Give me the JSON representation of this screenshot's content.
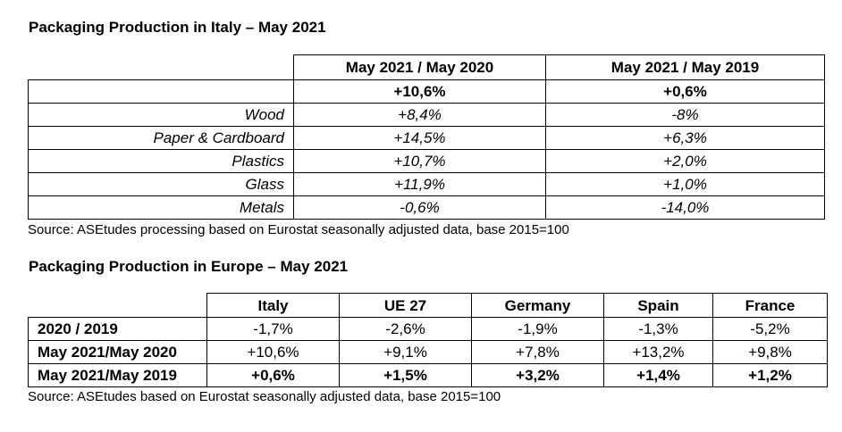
{
  "italy": {
    "title": "Packaging Production in Italy – May 2021",
    "headers": [
      "May 2021 / May 2020",
      "May 2021 / May 2019"
    ],
    "total": [
      "+10,6%",
      "+0,6%"
    ],
    "rows": [
      {
        "label": "Wood",
        "values": [
          "+8,4%",
          "-8%"
        ]
      },
      {
        "label": "Paper & Cardboard",
        "values": [
          "+14,5%",
          "+6,3%"
        ]
      },
      {
        "label": "Plastics",
        "values": [
          "+10,7%",
          "+2,0%"
        ]
      },
      {
        "label": "Glass",
        "values": [
          "+11,9%",
          "+1,0%"
        ]
      },
      {
        "label": "Metals",
        "values": [
          "-0,6%",
          "-14,0%"
        ]
      }
    ],
    "source": "Source: ASEtudes processing based on Eurostat seasonally adjusted data, base 2015=100"
  },
  "europe": {
    "title": "Packaging Production in Europe – May 2021",
    "headers": [
      "Italy",
      "UE 27",
      "Germany",
      "Spain",
      "France"
    ],
    "rows": [
      {
        "label": "2020 / 2019",
        "values": [
          "-1,7%",
          "-2,6%",
          "-1,9%",
          "-1,3%",
          "-5,2%"
        ]
      },
      {
        "label": "May 2021/May 2020",
        "values": [
          "+10,6%",
          "+9,1%",
          "+7,8%",
          "+13,2%",
          "+9,8%"
        ]
      },
      {
        "label": "May 2021/May 2019",
        "values": [
          "+0,6%",
          "+1,5%",
          "+3,2%",
          "+1,4%",
          "+1,2%"
        ]
      }
    ],
    "source": "Source: ASEtudes based on Eurostat seasonally adjusted data, base 2015=100"
  }
}
